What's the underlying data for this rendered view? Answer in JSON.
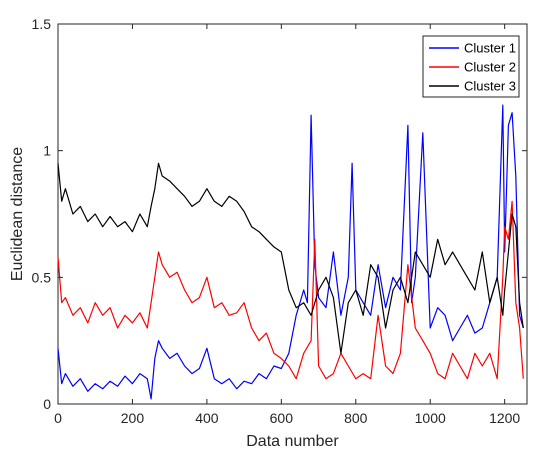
{
  "chart_data": {
    "type": "line",
    "xlabel": "Data number",
    "ylabel": "Euclidean distance",
    "xlim": [
      0,
      1260
    ],
    "ylim": [
      0,
      1.5
    ],
    "x_ticks": [
      0,
      200,
      400,
      600,
      800,
      1000,
      1200
    ],
    "x_tick_labels": [
      "0",
      "200",
      "400",
      "600",
      "800",
      "1000",
      "1200"
    ],
    "y_ticks": [
      0,
      0.5,
      1,
      1.5
    ],
    "y_tick_labels": [
      "0",
      "0.5",
      "1",
      "1.5"
    ],
    "grid": false,
    "legend": {
      "position": "top-right"
    },
    "series": [
      {
        "name": "Cluster 1",
        "color": "#0000ff",
        "x": [
          0,
          10,
          20,
          40,
          60,
          80,
          100,
          120,
          140,
          160,
          180,
          200,
          220,
          240,
          250,
          260,
          270,
          280,
          300,
          320,
          340,
          360,
          380,
          400,
          420,
          440,
          460,
          480,
          500,
          520,
          540,
          560,
          580,
          600,
          620,
          640,
          660,
          670,
          680,
          690,
          700,
          720,
          740,
          760,
          780,
          790,
          800,
          820,
          840,
          860,
          880,
          900,
          920,
          940,
          950,
          960,
          980,
          1000,
          1020,
          1040,
          1060,
          1080,
          1100,
          1120,
          1140,
          1160,
          1180,
          1195,
          1200,
          1210,
          1220,
          1230,
          1240,
          1250
        ],
        "values": [
          0.22,
          0.08,
          0.12,
          0.07,
          0.1,
          0.05,
          0.08,
          0.06,
          0.09,
          0.07,
          0.11,
          0.08,
          0.12,
          0.1,
          0.02,
          0.18,
          0.25,
          0.22,
          0.18,
          0.2,
          0.15,
          0.12,
          0.14,
          0.22,
          0.1,
          0.08,
          0.1,
          0.06,
          0.09,
          0.08,
          0.12,
          0.1,
          0.15,
          0.14,
          0.2,
          0.35,
          0.45,
          0.4,
          1.14,
          0.55,
          0.42,
          0.38,
          0.6,
          0.35,
          0.5,
          0.95,
          0.45,
          0.4,
          0.35,
          0.55,
          0.38,
          0.5,
          0.45,
          1.1,
          0.4,
          0.5,
          1.07,
          0.3,
          0.38,
          0.35,
          0.25,
          0.3,
          0.35,
          0.28,
          0.3,
          0.4,
          0.5,
          1.18,
          0.6,
          1.1,
          1.15,
          0.9,
          0.35,
          0.3
        ]
      },
      {
        "name": "Cluster 2",
        "color": "#ff0000",
        "x": [
          0,
          10,
          20,
          40,
          60,
          80,
          100,
          120,
          140,
          160,
          180,
          200,
          220,
          240,
          250,
          260,
          270,
          280,
          300,
          320,
          340,
          360,
          380,
          400,
          420,
          440,
          460,
          480,
          500,
          520,
          540,
          560,
          580,
          600,
          620,
          640,
          660,
          680,
          690,
          700,
          720,
          740,
          760,
          780,
          800,
          820,
          840,
          860,
          880,
          900,
          920,
          940,
          960,
          980,
          1000,
          1020,
          1040,
          1060,
          1080,
          1100,
          1120,
          1140,
          1160,
          1180,
          1195,
          1200,
          1210,
          1220,
          1230,
          1240,
          1250
        ],
        "values": [
          0.58,
          0.4,
          0.42,
          0.35,
          0.38,
          0.32,
          0.4,
          0.35,
          0.38,
          0.3,
          0.35,
          0.32,
          0.36,
          0.3,
          0.4,
          0.5,
          0.6,
          0.55,
          0.5,
          0.52,
          0.45,
          0.4,
          0.42,
          0.5,
          0.38,
          0.4,
          0.35,
          0.36,
          0.4,
          0.3,
          0.25,
          0.28,
          0.2,
          0.18,
          0.15,
          0.1,
          0.2,
          0.25,
          0.65,
          0.15,
          0.1,
          0.12,
          0.2,
          0.15,
          0.1,
          0.12,
          0.1,
          0.35,
          0.15,
          0.12,
          0.2,
          0.55,
          0.3,
          0.25,
          0.2,
          0.12,
          0.1,
          0.2,
          0.15,
          0.1,
          0.2,
          0.15,
          0.2,
          0.1,
          0.5,
          0.7,
          0.65,
          0.8,
          0.4,
          0.3,
          0.1
        ]
      },
      {
        "name": "Cluster 3",
        "color": "#000000",
        "x": [
          0,
          10,
          20,
          40,
          60,
          80,
          100,
          120,
          140,
          160,
          180,
          200,
          220,
          240,
          250,
          260,
          270,
          280,
          300,
          320,
          340,
          360,
          380,
          400,
          420,
          440,
          460,
          480,
          500,
          520,
          540,
          560,
          580,
          600,
          620,
          640,
          660,
          680,
          700,
          720,
          740,
          760,
          780,
          800,
          820,
          840,
          860,
          880,
          900,
          920,
          940,
          960,
          980,
          1000,
          1020,
          1040,
          1060,
          1080,
          1100,
          1120,
          1140,
          1160,
          1180,
          1195,
          1200,
          1210,
          1220,
          1230,
          1240,
          1250
        ],
        "values": [
          0.95,
          0.8,
          0.85,
          0.75,
          0.78,
          0.72,
          0.75,
          0.7,
          0.74,
          0.7,
          0.72,
          0.68,
          0.75,
          0.7,
          0.78,
          0.85,
          0.95,
          0.9,
          0.88,
          0.85,
          0.82,
          0.78,
          0.8,
          0.85,
          0.8,
          0.78,
          0.82,
          0.8,
          0.76,
          0.7,
          0.68,
          0.65,
          0.62,
          0.6,
          0.45,
          0.38,
          0.4,
          0.35,
          0.45,
          0.5,
          0.42,
          0.2,
          0.4,
          0.45,
          0.35,
          0.55,
          0.5,
          0.3,
          0.45,
          0.5,
          0.4,
          0.6,
          0.55,
          0.5,
          0.65,
          0.55,
          0.6,
          0.55,
          0.5,
          0.45,
          0.6,
          0.4,
          0.5,
          0.35,
          0.45,
          0.6,
          0.75,
          0.7,
          0.4,
          0.3
        ]
      }
    ]
  }
}
